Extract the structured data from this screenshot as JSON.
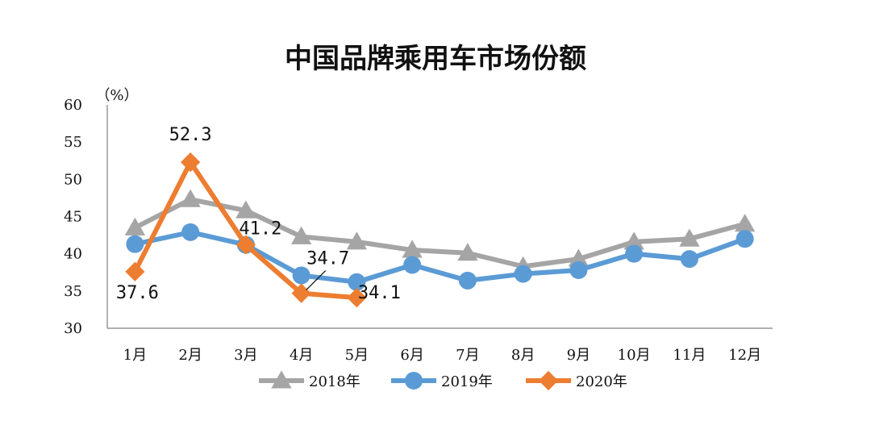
{
  "chart_data": {
    "type": "line",
    "title": "中国品牌乘用车市场份额",
    "ylabel": "（%）",
    "xlabel": "",
    "ylim": [
      30,
      60
    ],
    "yticks": [
      30,
      35,
      40,
      45,
      50,
      55,
      60
    ],
    "categories": [
      "1月",
      "2月",
      "3月",
      "4月",
      "5月",
      "6月",
      "7月",
      "8月",
      "9月",
      "10月",
      "11月",
      "12月"
    ],
    "series": [
      {
        "name": "2018年",
        "color": "#a5a5a5",
        "marker": "triangle",
        "values": [
          43.5,
          47.3,
          45.8,
          42.3,
          41.6,
          40.5,
          40.1,
          38.3,
          39.3,
          41.6,
          42.0,
          44.0
        ]
      },
      {
        "name": "2019年",
        "color": "#5b9bd5",
        "marker": "circle",
        "values": [
          41.3,
          42.9,
          41.2,
          37.1,
          36.2,
          38.5,
          36.4,
          37.3,
          37.8,
          40.0,
          39.3,
          42.0
        ]
      },
      {
        "name": "2020年",
        "color": "#ed7d31",
        "marker": "diamond",
        "values": [
          37.6,
          52.3,
          41.2,
          34.7,
          34.1,
          null,
          null,
          null,
          null,
          null,
          null,
          null
        ]
      }
    ],
    "annotations": [
      {
        "text": "37.6",
        "series": "2020年",
        "index": 0
      },
      {
        "text": "52.3",
        "series": "2020年",
        "index": 1
      },
      {
        "text": "41.2",
        "series": "2020年",
        "index": 2
      },
      {
        "text": "34.7",
        "series": "2020年",
        "index": 3
      },
      {
        "text": "34.1",
        "series": "2020年",
        "index": 4
      }
    ],
    "grid": false,
    "legend_position": "bottom"
  }
}
